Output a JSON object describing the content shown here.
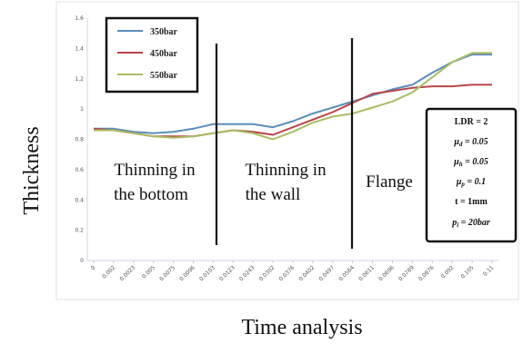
{
  "chart_data": {
    "type": "line",
    "xlabel": "Time analysis",
    "ylabel": "Thickness",
    "ylim": [
      0,
      1.6
    ],
    "y_ticks": [
      "0",
      "0.2",
      "0.4",
      "0.6",
      "0.8",
      "1",
      "1.2",
      "1.4",
      "1.6"
    ],
    "x_ticks": [
      "0",
      "0.002",
      "0.0023",
      "0.005",
      "0.0075",
      "0.0096",
      "0.0103",
      "0.0123",
      "0.0243",
      "0.0302",
      "0.0376",
      "0.0402",
      "0.0497",
      "0.0564",
      "0.0611",
      "0.0696",
      "0.0789",
      "0.0876",
      "0.092",
      "0.105",
      "0.11"
    ],
    "grid": false,
    "legend_position": "top-left",
    "series": [
      {
        "name": "350bar",
        "color": "#5b8db8",
        "values": [
          0.87,
          0.87,
          0.85,
          0.84,
          0.85,
          0.87,
          0.9,
          0.9,
          0.9,
          0.88,
          0.92,
          0.97,
          1.01,
          1.05,
          1.09,
          1.13,
          1.16,
          1.24,
          1.31,
          1.36,
          1.36
        ]
      },
      {
        "name": "450bar",
        "color": "#b8454a",
        "values": [
          0.87,
          0.86,
          0.84,
          0.82,
          0.82,
          0.82,
          0.84,
          0.86,
          0.85,
          0.83,
          0.88,
          0.93,
          0.98,
          1.04,
          1.1,
          1.12,
          1.14,
          1.15,
          1.15,
          1.16,
          1.16
        ]
      },
      {
        "name": "550bar",
        "color": "#a9bd64",
        "values": [
          0.86,
          0.86,
          0.84,
          0.82,
          0.81,
          0.82,
          0.84,
          0.86,
          0.84,
          0.8,
          0.85,
          0.91,
          0.95,
          0.97,
          1.01,
          1.05,
          1.11,
          1.21,
          1.31,
          1.37,
          1.37
        ]
      }
    ],
    "region_labels": [
      {
        "lines": [
          "Thinning  in",
          "the bottom"
        ]
      },
      {
        "lines": [
          "Thinning in",
          "the wall"
        ]
      },
      {
        "lines": [
          "Flange"
        ]
      }
    ],
    "parameters": [
      "LDR = 2",
      "μd = 0.05",
      "μh = 0.05",
      "μp = 0.1",
      "t = 1mm",
      "pi = 20bar"
    ]
  }
}
